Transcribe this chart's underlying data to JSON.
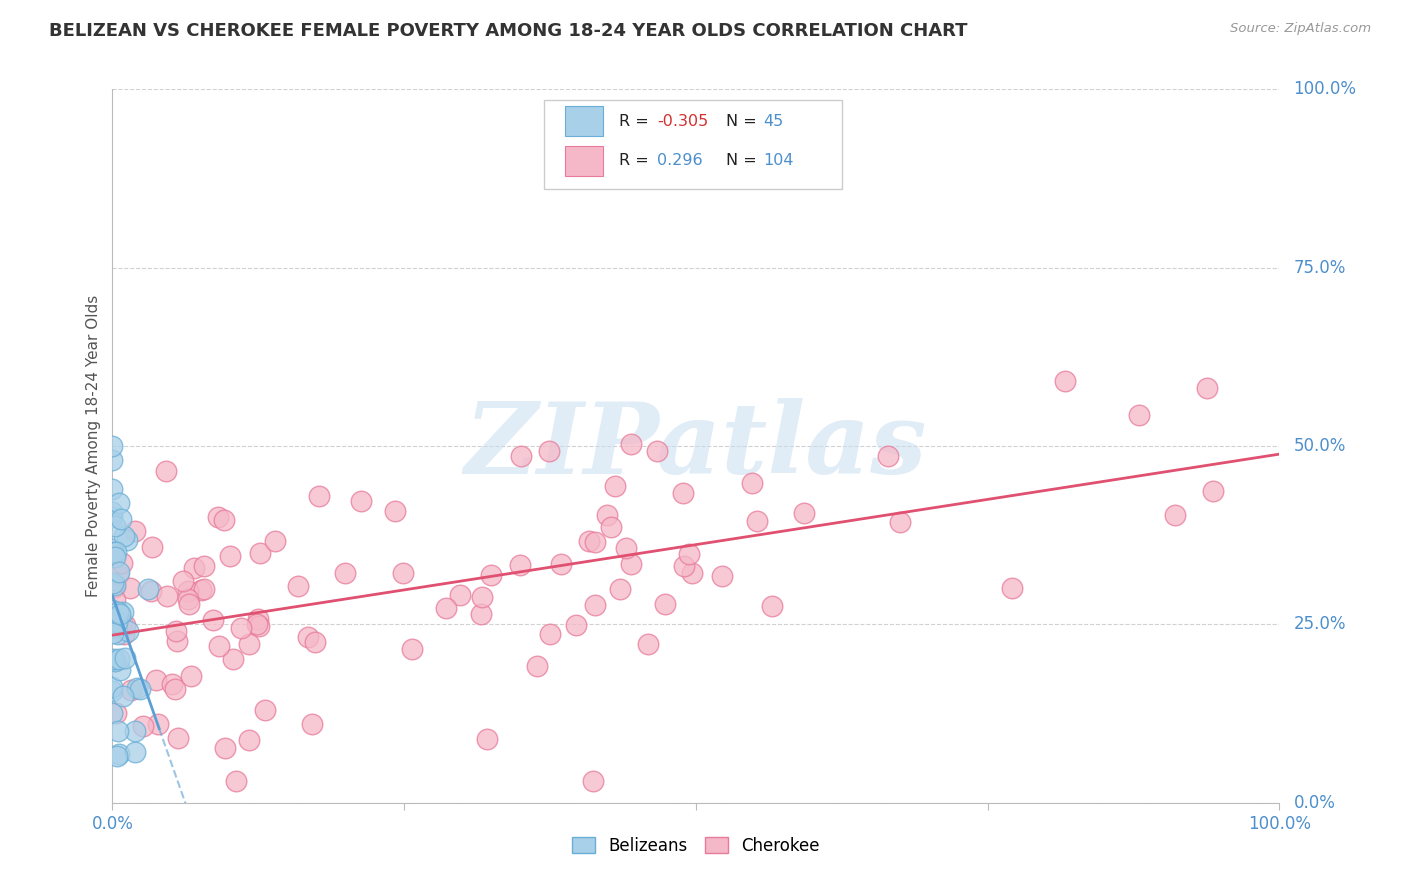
{
  "title": "BELIZEAN VS CHEROKEE FEMALE POVERTY AMONG 18-24 YEAR OLDS CORRELATION CHART",
  "source": "Source: ZipAtlas.com",
  "ylabel": "Female Poverty Among 18-24 Year Olds",
  "xlim": [
    0,
    1
  ],
  "ylim": [
    0,
    1
  ],
  "belizean_color": "#a8d0e8",
  "belizean_edge_color": "#6aaed6",
  "cherokee_color": "#f5b8c8",
  "cherokee_edge_color": "#e87a9a",
  "belizean_line_color": "#5b9fd4",
  "cherokee_line_color": "#e05070",
  "background_color": "#ffffff",
  "grid_color": "#cccccc",
  "title_color": "#333333",
  "axis_label_color": "#555555",
  "tick_color": "#4d8fcc",
  "legend_r1_val": "-0.305",
  "legend_n1_val": "45",
  "legend_r2_val": "0.296",
  "legend_n2_val": "104",
  "watermark_color": "#c8ddf0",
  "watermark_text": "ZIPatlas"
}
